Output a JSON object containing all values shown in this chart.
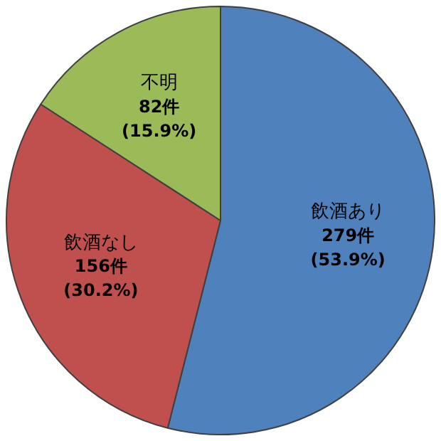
{
  "chart_data": {
    "type": "pie",
    "categories": [
      "飲酒あり",
      "飲酒なし",
      "不明"
    ],
    "values": [
      279,
      156,
      82
    ],
    "colors": [
      "#4f81bd",
      "#c0504d",
      "#9bbb59"
    ],
    "value_labels": [
      "279件\n(53.9%)",
      "156件\n(30.2%)",
      "82件\n(15.9%)"
    ],
    "legend": false
  }
}
